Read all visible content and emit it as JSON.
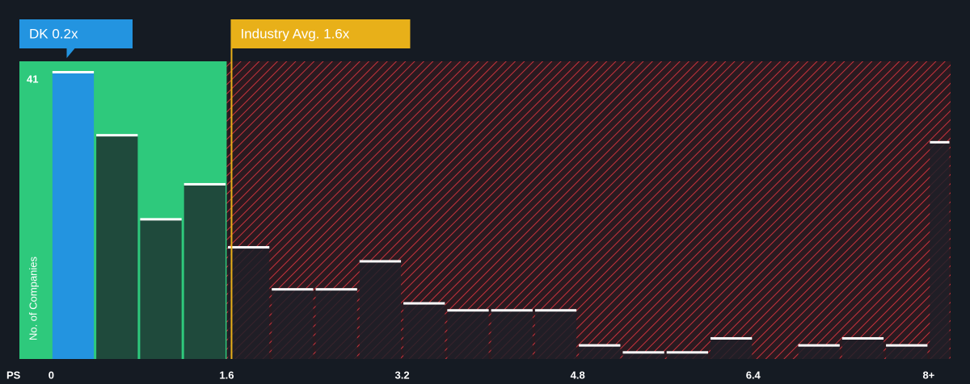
{
  "chart_data": {
    "type": "histogram",
    "x_label": "PS",
    "y_label": "No. of Companies",
    "bins": [
      0,
      0.4,
      0.8,
      1.2,
      1.6,
      2.0,
      2.4,
      2.8,
      3.2,
      3.6,
      4.0,
      4.4,
      4.8,
      5.2,
      5.6,
      6.0,
      6.4,
      6.8,
      7.2,
      7.6,
      8.0,
      8.2
    ],
    "counts": [
      41,
      32,
      20,
      25,
      16,
      10,
      10,
      14,
      8,
      7,
      7,
      7,
      2,
      1,
      1,
      3,
      0,
      2,
      3,
      2,
      31
    ],
    "xlim": [
      -0.29,
      8.2
    ],
    "ylim": [
      0,
      41
    ],
    "xticks": [
      0,
      1.6,
      3.2,
      4.8,
      6.4,
      {
        "value": 8,
        "label": "8+"
      }
    ],
    "yticks": [
      41
    ],
    "highlight": {
      "label": "DK 0.2x",
      "value": 0.2,
      "color": "#2394e0"
    },
    "reference": {
      "label": "Industry Avg. 1.6x",
      "value": 1.6,
      "color": "#e8b019"
    },
    "below_color": "#2ec97c",
    "above_color": "#c8323c"
  }
}
